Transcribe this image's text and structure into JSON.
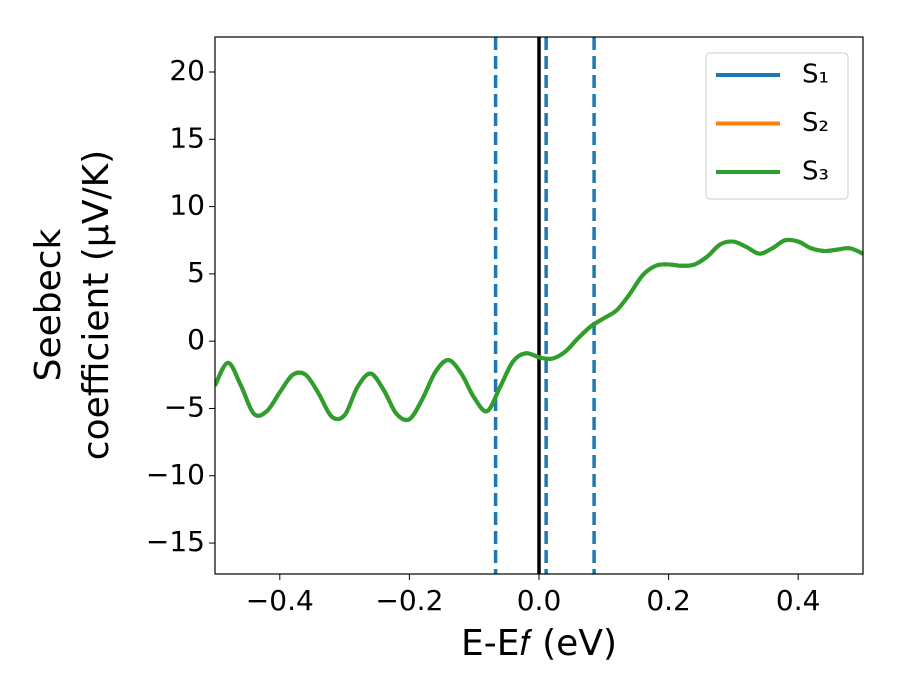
{
  "chart_data": {
    "type": "line",
    "xlabel": "E-E𝑓 (eV)",
    "ylabel": [
      "Seebeck",
      "coefficient  (μV/K)"
    ],
    "x": [
      -0.5,
      -0.48,
      -0.46,
      -0.44,
      -0.42,
      -0.4,
      -0.38,
      -0.36,
      -0.34,
      -0.32,
      -0.3,
      -0.28,
      -0.26,
      -0.24,
      -0.22,
      -0.2,
      -0.18,
      -0.16,
      -0.14,
      -0.12,
      -0.1,
      -0.08,
      -0.06,
      -0.04,
      -0.02,
      0,
      0.02,
      0.04,
      0.06,
      0.08,
      0.1,
      0.12,
      0.14,
      0.16,
      0.18,
      0.2,
      0.22,
      0.24,
      0.26,
      0.28,
      0.3,
      0.32,
      0.34,
      0.36,
      0.38,
      0.4,
      0.42,
      0.44,
      0.46,
      0.48,
      0.5
    ],
    "series": [
      {
        "name": "S₁",
        "color": "#1f77b4",
        "values": [
          -3.3,
          -1.6,
          -3.3,
          -5.4,
          -5.2,
          -3.8,
          -2.5,
          -2.5,
          -3.9,
          -5.6,
          -5.5,
          -3.4,
          -2.4,
          -3.6,
          -5.4,
          -5.8,
          -4.3,
          -2.3,
          -1.4,
          -2.4,
          -4.2,
          -5.2,
          -3.4,
          -1.5,
          -0.9,
          -1.2,
          -1.3,
          -0.8,
          0.2,
          1.1,
          1.7,
          2.3,
          3.5,
          4.9,
          5.6,
          5.7,
          5.6,
          5.7,
          6.3,
          7.2,
          7.4,
          7.0,
          6.5,
          6.9,
          7.5,
          7.4,
          6.9,
          6.7,
          6.8,
          6.9,
          6.5
        ]
      },
      {
        "name": "S₂",
        "color": "#ff7f0e",
        "values": [
          -3.3,
          -1.6,
          -3.3,
          -5.4,
          -5.2,
          -3.8,
          -2.5,
          -2.5,
          -3.9,
          -5.6,
          -5.5,
          -3.4,
          -2.4,
          -3.6,
          -5.4,
          -5.8,
          -4.3,
          -2.3,
          -1.4,
          -2.4,
          -4.2,
          -5.2,
          -3.4,
          -1.5,
          -0.9,
          -1.2,
          -1.3,
          -0.8,
          0.2,
          1.1,
          1.7,
          2.3,
          3.5,
          4.9,
          5.6,
          5.7,
          5.6,
          5.7,
          6.3,
          7.2,
          7.4,
          7.0,
          6.5,
          6.9,
          7.5,
          7.4,
          6.9,
          6.7,
          6.8,
          6.9,
          6.5
        ]
      },
      {
        "name": "S₃",
        "color": "#2ca02c",
        "values": [
          -3.3,
          -1.6,
          -3.3,
          -5.4,
          -5.2,
          -3.8,
          -2.5,
          -2.5,
          -3.9,
          -5.6,
          -5.5,
          -3.4,
          -2.4,
          -3.6,
          -5.4,
          -5.8,
          -4.3,
          -2.3,
          -1.4,
          -2.4,
          -4.2,
          -5.2,
          -3.4,
          -1.5,
          -0.9,
          -1.2,
          -1.3,
          -0.8,
          0.2,
          1.1,
          1.7,
          2.3,
          3.5,
          4.9,
          5.6,
          5.7,
          5.6,
          5.7,
          6.3,
          7.2,
          7.4,
          7.0,
          6.5,
          6.9,
          7.5,
          7.4,
          6.9,
          6.7,
          6.8,
          6.9,
          6.5
        ]
      }
    ],
    "vlines": [
      {
        "x": 0,
        "color": "#000000",
        "style": "solid"
      },
      {
        "x": -0.067,
        "color": "#1f77b4",
        "style": "dashed"
      },
      {
        "x": 0.011,
        "color": "#1f77b4",
        "style": "dashed"
      },
      {
        "x": 0.085,
        "color": "#1f77b4",
        "style": "dashed"
      }
    ],
    "xlim": [
      -0.5,
      0.5
    ],
    "xticks": [
      {
        "value": -0.4,
        "label": "−0.4"
      },
      {
        "value": -0.2,
        "label": "−0.2"
      },
      {
        "value": 0,
        "label": "0.0"
      },
      {
        "value": 0.2,
        "label": "0.2"
      },
      {
        "value": 0.4,
        "label": "0.4"
      }
    ],
    "ylim": [
      -17.3,
      22.6
    ],
    "yticks": [
      {
        "value": -15,
        "label": "−15"
      },
      {
        "value": -10,
        "label": "−10"
      },
      {
        "value": -5,
        "label": "−5"
      },
      0,
      5,
      10,
      15,
      20
    ],
    "grid": false,
    "legend": "upper right"
  }
}
